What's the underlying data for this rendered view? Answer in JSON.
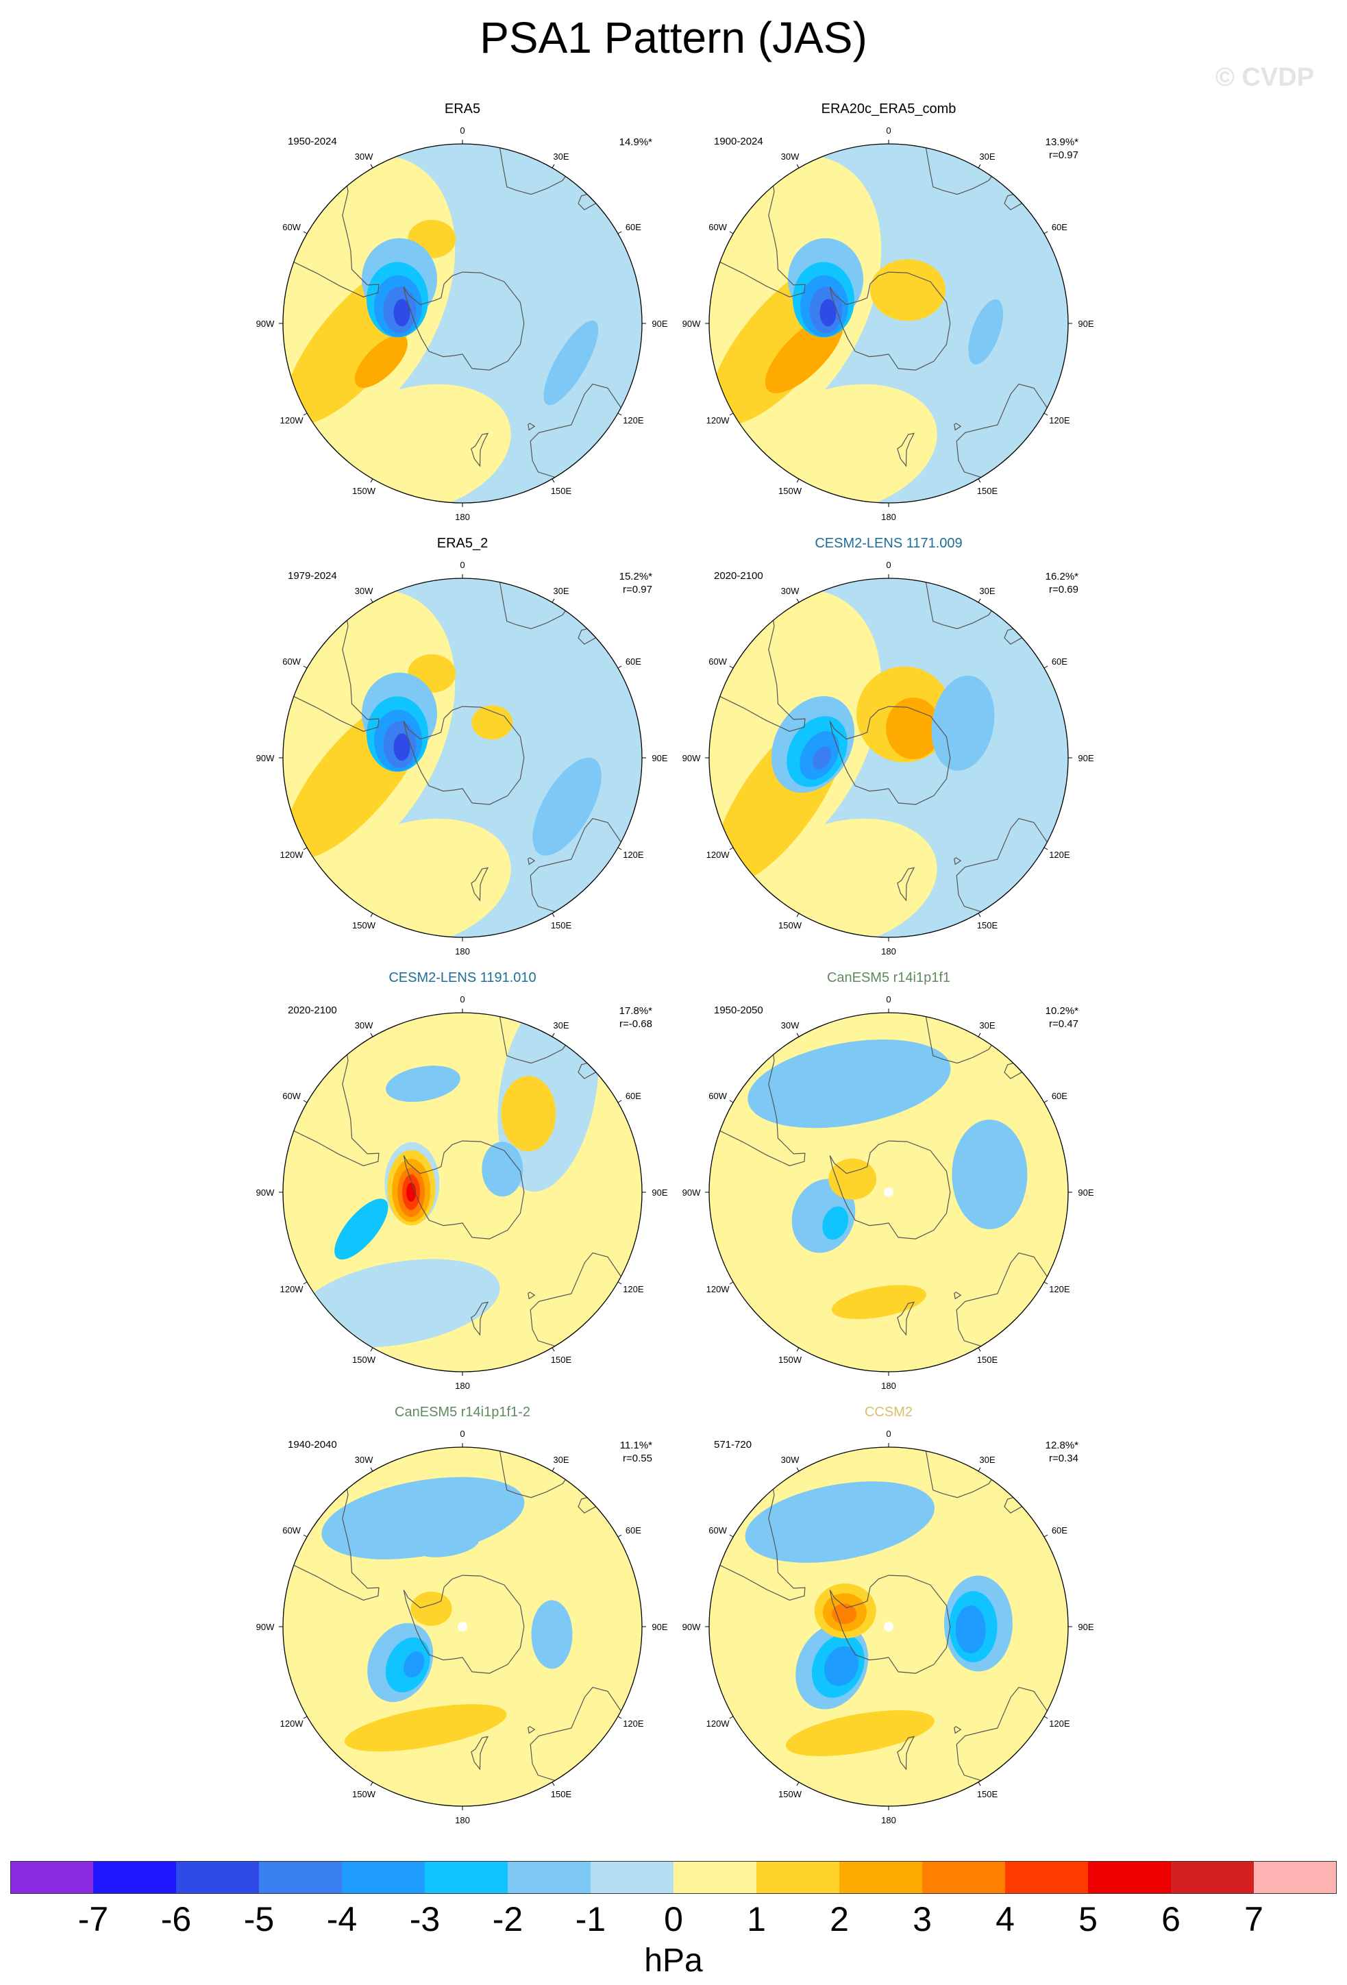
{
  "title": "PSA1 Pattern (JAS)",
  "watermark": "© CVDP",
  "colors": {
    "n7": "#8a2be2",
    "n6": "#1e16ff",
    "n5": "#2e4be8",
    "n4": "#3a7ff0",
    "n3": "#1e9cff",
    "n2": "#10c4ff",
    "n1": "#7dc8f4",
    "n0": "#b4def2",
    "p0": "#fff59a",
    "p1": "#ffd42a",
    "p2": "#ffaa00",
    "p3": "#ff7f00",
    "p4": "#ff3c00",
    "p5": "#ee0000",
    "p6": "#d42020",
    "p7": "#ffb4b4",
    "coast": "#555555"
  },
  "lon_labels": [
    "0",
    "30E",
    "60E",
    "90E",
    "120E",
    "150E",
    "180",
    "150W",
    "120W",
    "90W",
    "60W",
    "30W"
  ],
  "panels": [
    {
      "name": "ERA5",
      "title_color": "#000000",
      "period": "1950-2024",
      "pct": "14.9%*",
      "r": "",
      "blobs": [
        {
          "lat": -48,
          "lon": -100,
          "rx": 55,
          "ry": 150,
          "rot": 40,
          "level": 1
        },
        {
          "lat": -55,
          "lon": -115,
          "rx": 22,
          "ry": 50,
          "rot": 45,
          "level": 2
        },
        {
          "lat": -55,
          "lon": -20,
          "rx": 35,
          "ry": 28,
          "rot": 0,
          "level": 1
        },
        {
          "lat": -60,
          "lon": -55,
          "rx": 55,
          "ry": 60,
          "rot": 0,
          "level": -1
        },
        {
          "lat": -63,
          "lon": -70,
          "rx": 45,
          "ry": 55,
          "rot": 0,
          "level": -2
        },
        {
          "lat": -64,
          "lon": -75,
          "rx": 35,
          "ry": 45,
          "rot": 0,
          "level": -3
        },
        {
          "lat": -65,
          "lon": -78,
          "rx": 24,
          "ry": 34,
          "rot": 0,
          "level": -4
        },
        {
          "lat": -66,
          "lon": -80,
          "rx": 12,
          "ry": 20,
          "rot": 0,
          "level": -5
        },
        {
          "lat": -45,
          "lon": 110,
          "rx": 22,
          "ry": 70,
          "rot": 30,
          "level": -1
        }
      ]
    },
    {
      "name": "ERA20c_ERA5_comb",
      "title_color": "#000000",
      "period": "1900-2024",
      "pct": "13.9%*",
      "r": "r=0.97",
      "blobs": [
        {
          "lat": -48,
          "lon": -100,
          "rx": 58,
          "ry": 150,
          "rot": 40,
          "level": 1
        },
        {
          "lat": -55,
          "lon": -110,
          "rx": 30,
          "ry": 75,
          "rot": 45,
          "level": 2
        },
        {
          "lat": -75,
          "lon": 30,
          "rx": 55,
          "ry": 45,
          "rot": 0,
          "level": 1
        },
        {
          "lat": -60,
          "lon": -55,
          "rx": 55,
          "ry": 60,
          "rot": 0,
          "level": -1
        },
        {
          "lat": -63,
          "lon": -70,
          "rx": 45,
          "ry": 55,
          "rot": 0,
          "level": -2
        },
        {
          "lat": -64,
          "lon": -75,
          "rx": 35,
          "ry": 45,
          "rot": 0,
          "level": -3
        },
        {
          "lat": -65,
          "lon": -78,
          "rx": 24,
          "ry": 34,
          "rot": 0,
          "level": -4
        },
        {
          "lat": -66,
          "lon": -80,
          "rx": 12,
          "ry": 20,
          "rot": 0,
          "level": -5
        },
        {
          "lat": -52,
          "lon": 95,
          "rx": 20,
          "ry": 50,
          "rot": 20,
          "level": -1
        }
      ]
    },
    {
      "name": "ERA5_2",
      "title_color": "#000000",
      "period": "1979-2024",
      "pct": "15.2%*",
      "r": "r=0.97",
      "blobs": [
        {
          "lat": -48,
          "lon": -100,
          "rx": 55,
          "ry": 150,
          "rot": 40,
          "level": 1
        },
        {
          "lat": -55,
          "lon": -20,
          "rx": 35,
          "ry": 28,
          "rot": 0,
          "level": 1
        },
        {
          "lat": -72,
          "lon": 40,
          "rx": 30,
          "ry": 25,
          "rot": 0,
          "level": 1
        },
        {
          "lat": -60,
          "lon": -55,
          "rx": 55,
          "ry": 60,
          "rot": 0,
          "level": -1
        },
        {
          "lat": -63,
          "lon": -70,
          "rx": 45,
          "ry": 55,
          "rot": 0,
          "level": -2
        },
        {
          "lat": -64,
          "lon": -75,
          "rx": 35,
          "ry": 45,
          "rot": 0,
          "level": -3
        },
        {
          "lat": -65,
          "lon": -78,
          "rx": 24,
          "ry": 34,
          "rot": 0,
          "level": -4
        },
        {
          "lat": -66,
          "lon": -80,
          "rx": 12,
          "ry": 20,
          "rot": 0,
          "level": -5
        },
        {
          "lat": -45,
          "lon": 115,
          "rx": 35,
          "ry": 80,
          "rot": 30,
          "level": -1
        }
      ]
    },
    {
      "name": "CESM2-LENS 1171.009",
      "title_color": "#1e6e96",
      "period": "2020-2100",
      "pct": "16.2%*",
      "r": "r=0.69",
      "blobs": [
        {
          "lat": -45,
          "lon": -110,
          "rx": 55,
          "ry": 150,
          "rot": 35,
          "level": 1
        },
        {
          "lat": -72,
          "lon": 20,
          "rx": 70,
          "ry": 70,
          "rot": 0,
          "level": 1
        },
        {
          "lat": -75,
          "lon": 40,
          "rx": 40,
          "ry": 45,
          "rot": 0,
          "level": 2
        },
        {
          "lat": -58,
          "lon": 65,
          "rx": 45,
          "ry": 70,
          "rot": 10,
          "level": -1
        },
        {
          "lat": -60,
          "lon": -80,
          "rx": 55,
          "ry": 75,
          "rot": 30,
          "level": -1
        },
        {
          "lat": -62,
          "lon": -85,
          "rx": 40,
          "ry": 55,
          "rot": 30,
          "level": -2
        },
        {
          "lat": -63,
          "lon": -88,
          "rx": 25,
          "ry": 38,
          "rot": 30,
          "level": -3
        },
        {
          "lat": -64,
          "lon": -90,
          "rx": 12,
          "ry": 18,
          "rot": 30,
          "level": -4
        }
      ]
    },
    {
      "name": "CESM2-LENS 1191.010",
      "title_color": "#1e6e96",
      "period": "2020-2100",
      "pct": "17.8%*",
      "r": "r=-0.68",
      "blobs": [
        {
          "lat": -38,
          "lon": 40,
          "rx": 70,
          "ry": 150,
          "rot": 10,
          "level": 0
        },
        {
          "lat": -50,
          "lon": 40,
          "rx": 40,
          "ry": 55,
          "rot": 0,
          "level": 1
        },
        {
          "lat": -40,
          "lon": -150,
          "rx": 60,
          "ry": 150,
          "rot": 80,
          "level": 0
        },
        {
          "lat": -70,
          "lon": -80,
          "rx": 40,
          "ry": 60,
          "rot": 0,
          "level": 0
        },
        {
          "lat": -70,
          "lon": -85,
          "rx": 35,
          "ry": 55,
          "rot": 0,
          "level": 1
        },
        {
          "lat": -70,
          "lon": -88,
          "rx": 28,
          "ry": 46,
          "rot": 0,
          "level": 2
        },
        {
          "lat": -70,
          "lon": -90,
          "rx": 20,
          "ry": 36,
          "rot": 0,
          "level": 3
        },
        {
          "lat": -70,
          "lon": -90,
          "rx": 13,
          "ry": 26,
          "rot": 0,
          "level": 4
        },
        {
          "lat": -70,
          "lon": -90,
          "rx": 7,
          "ry": 14,
          "rot": 0,
          "level": 5
        },
        {
          "lat": -45,
          "lon": -20,
          "rx": 25,
          "ry": 55,
          "rot": 80,
          "level": -1
        },
        {
          "lat": -48,
          "lon": -110,
          "rx": 22,
          "ry": 55,
          "rot": 40,
          "level": -2
        },
        {
          "lat": -72,
          "lon": 60,
          "rx": 30,
          "ry": 40,
          "rot": 0,
          "level": -1
        }
      ]
    },
    {
      "name": "CanESM5 r14i1p1f1",
      "title_color": "#5f8a5f",
      "period": "1950-2050",
      "pct": "10.2%*",
      "r": "r=0.47",
      "blobs": [
        {
          "lat": -45,
          "lon": -20,
          "rx": 60,
          "ry": 150,
          "rot": 80,
          "level": -1
        },
        {
          "lat": -50,
          "lon": 80,
          "rx": 55,
          "ry": 80,
          "rot": 0,
          "level": -1
        },
        {
          "lat": -58,
          "lon": 90,
          "rx": 20,
          "ry": 35,
          "rot": 0,
          "level": -1
        },
        {
          "lat": -63,
          "lon": -110,
          "rx": 45,
          "ry": 55,
          "rot": 20,
          "level": -1
        },
        {
          "lat": -66,
          "lon": -120,
          "rx": 18,
          "ry": 25,
          "rot": 20,
          "level": -2
        },
        {
          "lat": -75,
          "lon": -70,
          "rx": 35,
          "ry": 30,
          "rot": 0,
          "level": 1
        },
        {
          "lat": -47,
          "lon": -175,
          "rx": 22,
          "ry": 70,
          "rot": 80,
          "level": 1
        }
      ]
    },
    {
      "name": "CanESM5 r14i1p1f1-2",
      "title_color": "#5f8a5f",
      "period": "1940-2040",
      "pct": "11.1%*",
      "r": "r=0.55",
      "blobs": [
        {
          "lat": -45,
          "lon": -20,
          "rx": 55,
          "ry": 150,
          "rot": 80,
          "level": -1
        },
        {
          "lat": -58,
          "lon": -10,
          "rx": 15,
          "ry": 45,
          "rot": 80,
          "level": -1
        },
        {
          "lat": -55,
          "lon": 95,
          "rx": 30,
          "ry": 50,
          "rot": 0,
          "level": -1
        },
        {
          "lat": -62,
          "lon": -120,
          "rx": 45,
          "ry": 60,
          "rot": 25,
          "level": -1
        },
        {
          "lat": -64,
          "lon": -125,
          "rx": 30,
          "ry": 42,
          "rot": 25,
          "level": -2
        },
        {
          "lat": -66,
          "lon": -128,
          "rx": 14,
          "ry": 20,
          "rot": 25,
          "level": -3
        },
        {
          "lat": -76,
          "lon": -60,
          "rx": 30,
          "ry": 25,
          "rot": 0,
          "level": 1
        },
        {
          "lat": -48,
          "lon": -160,
          "rx": 28,
          "ry": 120,
          "rot": 80,
          "level": 1
        }
      ]
    },
    {
      "name": "CCSM2",
      "title_color": "#d8c068",
      "period": "571-720",
      "pct": "12.8%*",
      "r": "r=0.34",
      "blobs": [
        {
          "lat": -45,
          "lon": -25,
          "rx": 55,
          "ry": 140,
          "rot": 80,
          "level": -1
        },
        {
          "lat": -55,
          "lon": 88,
          "rx": 50,
          "ry": 70,
          "rot": 0,
          "level": -1
        },
        {
          "lat": -57,
          "lon": 90,
          "rx": 35,
          "ry": 52,
          "rot": 0,
          "level": -2
        },
        {
          "lat": -58,
          "lon": 92,
          "rx": 22,
          "ry": 35,
          "rot": 0,
          "level": -3
        },
        {
          "lat": -63,
          "lon": -125,
          "rx": 50,
          "ry": 65,
          "rot": 25,
          "level": -1
        },
        {
          "lat": -65,
          "lon": -128,
          "rx": 36,
          "ry": 48,
          "rot": 25,
          "level": -2
        },
        {
          "lat": -66,
          "lon": -130,
          "rx": 24,
          "ry": 30,
          "rot": 25,
          "level": -3
        },
        {
          "lat": -72,
          "lon": -70,
          "rx": 45,
          "ry": 40,
          "rot": 0,
          "level": 1
        },
        {
          "lat": -72,
          "lon": -72,
          "rx": 32,
          "ry": 28,
          "rot": 0,
          "level": 2
        },
        {
          "lat": -72,
          "lon": -74,
          "rx": 18,
          "ry": 15,
          "rot": 0,
          "level": 3
        },
        {
          "lat": -47,
          "lon": -165,
          "rx": 28,
          "ry": 110,
          "rot": 80,
          "level": 1
        }
      ]
    }
  ],
  "colorbar": {
    "levels": [
      "-7",
      "-6",
      "-5",
      "-4",
      "-3",
      "-2",
      "-1",
      "0",
      "1",
      "2",
      "3",
      "4",
      "5",
      "6",
      "7"
    ],
    "unit": "hPa"
  },
  "chart_data": {
    "type": "heatmap",
    "title": "PSA1 Pattern (JAS)",
    "projection": "south-polar stereographic",
    "units": "hPa",
    "contour_levels": [
      -7,
      -6,
      -5,
      -4,
      -3,
      -2,
      -1,
      0,
      1,
      2,
      3,
      4,
      5,
      6,
      7
    ],
    "panels": [
      {
        "name": "ERA5",
        "period": "1950-2024",
        "variance_explained_pct": 14.9,
        "pattern_r": null
      },
      {
        "name": "ERA20c_ERA5_comb",
        "period": "1900-2024",
        "variance_explained_pct": 13.9,
        "pattern_r": 0.97
      },
      {
        "name": "ERA5_2",
        "period": "1979-2024",
        "variance_explained_pct": 15.2,
        "pattern_r": 0.97
      },
      {
        "name": "CESM2-LENS 1171.009",
        "period": "2020-2100",
        "variance_explained_pct": 16.2,
        "pattern_r": 0.69
      },
      {
        "name": "CESM2-LENS 1191.010",
        "period": "2020-2100",
        "variance_explained_pct": 17.8,
        "pattern_r": -0.68
      },
      {
        "name": "CanESM5 r14i1p1f1",
        "period": "1950-2050",
        "variance_explained_pct": 10.2,
        "pattern_r": 0.47
      },
      {
        "name": "CanESM5 r14i1p1f1-2",
        "period": "1940-2040",
        "variance_explained_pct": 11.1,
        "pattern_r": 0.55
      },
      {
        "name": "CCSM2",
        "period": "571-720",
        "variance_explained_pct": 12.8,
        "pattern_r": 0.34
      }
    ]
  }
}
